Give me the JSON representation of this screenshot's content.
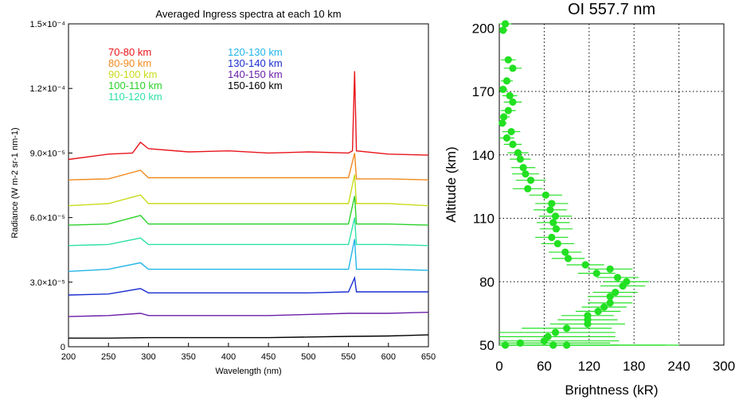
{
  "chart_data": [
    {
      "type": "line",
      "title": "Averaged Ingress spectra at each 10 km",
      "xlabel": "Wavelength (nm)",
      "ylabel": "Radiance (W m-2 sr-1 nm-1)",
      "xlim": [
        200,
        650
      ],
      "ylim": [
        0,
        0.00015
      ],
      "x_ticks": [
        "200",
        "250",
        "300",
        "350",
        "400",
        "450",
        "500",
        "550",
        "600",
        "650"
      ],
      "y_ticks": [
        {
          "value": 0,
          "label": "0"
        },
        {
          "value": 3e-05,
          "label": "3.0×10⁻⁵"
        },
        {
          "value": 6e-05,
          "label": "6.0×10⁻⁵"
        },
        {
          "value": 9e-05,
          "label": "9.0×10⁻⁵"
        },
        {
          "value": 0.00012,
          "label": "1.2×10⁻⁴"
        },
        {
          "value": 0.00015,
          "label": "1.5×10⁻⁴"
        }
      ],
      "legend_placement": "inside-top",
      "series": [
        {
          "name": "70-80 km",
          "color": "#e8141b",
          "x": [
            200,
            250,
            280,
            290,
            300,
            350,
            400,
            450,
            500,
            550,
            555,
            557.7,
            560,
            600,
            650
          ],
          "y": [
            8.7e-05,
            8.95e-05,
            9e-05,
            9.5e-05,
            9.2e-05,
            9.05e-05,
            9.1e-05,
            9e-05,
            9.05e-05,
            9e-05,
            9.1e-05,
            0.000128,
            9.1e-05,
            8.95e-05,
            8.9e-05
          ]
        },
        {
          "name": "80-90 km",
          "color": "#f08a1d",
          "x": [
            200,
            250,
            290,
            300,
            350,
            400,
            450,
            500,
            550,
            557.7,
            560,
            600,
            650
          ],
          "y": [
            7.75e-05,
            7.8e-05,
            8.2e-05,
            7.85e-05,
            7.85e-05,
            7.85e-05,
            7.85e-05,
            7.85e-05,
            7.85e-05,
            9e-05,
            7.8e-05,
            7.8e-05,
            7.75e-05
          ]
        },
        {
          "name": "90-100 km",
          "color": "#c8dc1c",
          "x": [
            200,
            250,
            290,
            300,
            350,
            400,
            450,
            500,
            550,
            557.7,
            560,
            600,
            650
          ],
          "y": [
            6.55e-05,
            6.65e-05,
            7.05e-05,
            6.65e-05,
            6.65e-05,
            6.65e-05,
            6.65e-05,
            6.65e-05,
            6.65e-05,
            8e-05,
            6.65e-05,
            6.65e-05,
            6.55e-05
          ]
        },
        {
          "name": "100-110 km",
          "color": "#2bd12b",
          "x": [
            200,
            250,
            290,
            300,
            350,
            400,
            450,
            500,
            550,
            557.7,
            560,
            600,
            650
          ],
          "y": [
            5.65e-05,
            5.7e-05,
            6.1e-05,
            5.7e-05,
            5.7e-05,
            5.7e-05,
            5.7e-05,
            5.7e-05,
            5.7e-05,
            7e-05,
            5.7e-05,
            5.7e-05,
            5.65e-05
          ]
        },
        {
          "name": "110-120 km",
          "color": "#2ee0a8",
          "x": [
            200,
            250,
            290,
            300,
            350,
            400,
            450,
            500,
            550,
            557.7,
            560,
            600,
            650
          ],
          "y": [
            4.7e-05,
            4.75e-05,
            5.05e-05,
            4.75e-05,
            4.75e-05,
            4.75e-05,
            4.75e-05,
            4.75e-05,
            4.75e-05,
            6e-05,
            4.75e-05,
            4.75e-05,
            4.7e-05
          ]
        },
        {
          "name": "120-130 km",
          "color": "#22b5e8",
          "x": [
            200,
            250,
            290,
            300,
            350,
            400,
            450,
            500,
            550,
            557.7,
            560,
            600,
            650
          ],
          "y": [
            3.5e-05,
            3.6e-05,
            3.9e-05,
            3.6e-05,
            3.6e-05,
            3.6e-05,
            3.6e-05,
            3.6e-05,
            3.6e-05,
            5e-05,
            3.6e-05,
            3.6e-05,
            3.55e-05
          ]
        },
        {
          "name": "130-140 km",
          "color": "#1a2fd0",
          "x": [
            200,
            250,
            290,
            300,
            350,
            400,
            450,
            500,
            550,
            557.7,
            560,
            600,
            650
          ],
          "y": [
            2.4e-05,
            2.45e-05,
            2.7e-05,
            2.5e-05,
            2.5e-05,
            2.5e-05,
            2.5e-05,
            2.5e-05,
            2.55e-05,
            3.2e-05,
            2.55e-05,
            2.55e-05,
            2.55e-05
          ]
        },
        {
          "name": "140-150 km",
          "color": "#6a1fa8",
          "x": [
            200,
            250,
            290,
            300,
            350,
            400,
            450,
            500,
            550,
            600,
            650
          ],
          "y": [
            1.4e-05,
            1.45e-05,
            1.55e-05,
            1.45e-05,
            1.45e-05,
            1.45e-05,
            1.45e-05,
            1.5e-05,
            1.55e-05,
            1.55e-05,
            1.6e-05
          ]
        },
        {
          "name": "150-160 km",
          "color": "#000000",
          "x": [
            200,
            250,
            300,
            350,
            400,
            450,
            500,
            550,
            600,
            650
          ],
          "y": [
            4e-06,
            4e-06,
            4.2e-06,
            4.2e-06,
            4.2e-06,
            4.2e-06,
            4.5e-06,
            4.8e-06,
            5e-06,
            5.5e-06
          ]
        }
      ]
    },
    {
      "type": "scatter",
      "title": "OI 557.7 nm",
      "xlabel": "Brightness (kR)",
      "ylabel": "Altitude (km)",
      "xlim": [
        0,
        300
      ],
      "ylim": [
        50,
        202
      ],
      "x_ticks": [
        "0",
        "60",
        "120",
        "180",
        "240",
        "300"
      ],
      "y_ticks": [
        "50",
        "80",
        "110",
        "140",
        "170",
        "200"
      ],
      "grid": "dotted",
      "color": "#22e022",
      "error_bars": "horizontal",
      "points": [
        {
          "alt": 202,
          "kr": 8,
          "err": 8
        },
        {
          "alt": 199,
          "kr": 5,
          "err": 6
        },
        {
          "alt": 185,
          "kr": 12,
          "err": 10
        },
        {
          "alt": 181,
          "kr": 18,
          "err": 12
        },
        {
          "alt": 175,
          "kr": 10,
          "err": 8
        },
        {
          "alt": 171,
          "kr": 5,
          "err": 6
        },
        {
          "alt": 168,
          "kr": 14,
          "err": 10
        },
        {
          "alt": 165,
          "kr": 18,
          "err": 12
        },
        {
          "alt": 161,
          "kr": 12,
          "err": 10
        },
        {
          "alt": 158,
          "kr": 6,
          "err": 8
        },
        {
          "alt": 155,
          "kr": 4,
          "err": 6
        },
        {
          "alt": 151,
          "kr": 16,
          "err": 12
        },
        {
          "alt": 148,
          "kr": 10,
          "err": 10
        },
        {
          "alt": 145,
          "kr": 18,
          "err": 12
        },
        {
          "alt": 141,
          "kr": 25,
          "err": 14
        },
        {
          "alt": 138,
          "kr": 28,
          "err": 14
        },
        {
          "alt": 134,
          "kr": 32,
          "err": 16
        },
        {
          "alt": 131,
          "kr": 35,
          "err": 18
        },
        {
          "alt": 128,
          "kr": 42,
          "err": 20
        },
        {
          "alt": 124,
          "kr": 38,
          "err": 20
        },
        {
          "alt": 121,
          "kr": 62,
          "err": 22
        },
        {
          "alt": 117,
          "kr": 70,
          "err": 22
        },
        {
          "alt": 114,
          "kr": 68,
          "err": 22
        },
        {
          "alt": 111,
          "kr": 75,
          "err": 22
        },
        {
          "alt": 108,
          "kr": 72,
          "err": 22
        },
        {
          "alt": 105,
          "kr": 76,
          "err": 22
        },
        {
          "alt": 101,
          "kr": 70,
          "err": 22
        },
        {
          "alt": 98,
          "kr": 78,
          "err": 22
        },
        {
          "alt": 94,
          "kr": 88,
          "err": 22
        },
        {
          "alt": 91,
          "kr": 92,
          "err": 22
        },
        {
          "alt": 88,
          "kr": 115,
          "err": 25
        },
        {
          "alt": 86,
          "kr": 148,
          "err": 30
        },
        {
          "alt": 84,
          "kr": 130,
          "err": 25
        },
        {
          "alt": 82,
          "kr": 158,
          "err": 28
        },
        {
          "alt": 80,
          "kr": 170,
          "err": 30
        },
        {
          "alt": 78,
          "kr": 165,
          "err": 30
        },
        {
          "alt": 75,
          "kr": 155,
          "err": 30
        },
        {
          "alt": 73,
          "kr": 148,
          "err": 30
        },
        {
          "alt": 70,
          "kr": 148,
          "err": 30
        },
        {
          "alt": 68,
          "kr": 140,
          "err": 30
        },
        {
          "alt": 66,
          "kr": 132,
          "err": 30
        },
        {
          "alt": 64,
          "kr": 118,
          "err": 35
        },
        {
          "alt": 62,
          "kr": 118,
          "err": 40
        },
        {
          "alt": 60,
          "kr": 118,
          "err": 50
        },
        {
          "alt": 58,
          "kr": 90,
          "err": 60
        },
        {
          "alt": 56,
          "kr": 75,
          "err": 80
        },
        {
          "alt": 54,
          "kr": 65,
          "err": 90
        },
        {
          "alt": 52,
          "kr": 60,
          "err": 100
        },
        {
          "alt": 51,
          "kr": 28,
          "err": 120
        },
        {
          "alt": 50,
          "kr": 8,
          "err": 150
        },
        {
          "alt": 50,
          "kr": 72,
          "err": 150
        },
        {
          "alt": 50,
          "kr": 90,
          "err": 150
        }
      ]
    }
  ]
}
